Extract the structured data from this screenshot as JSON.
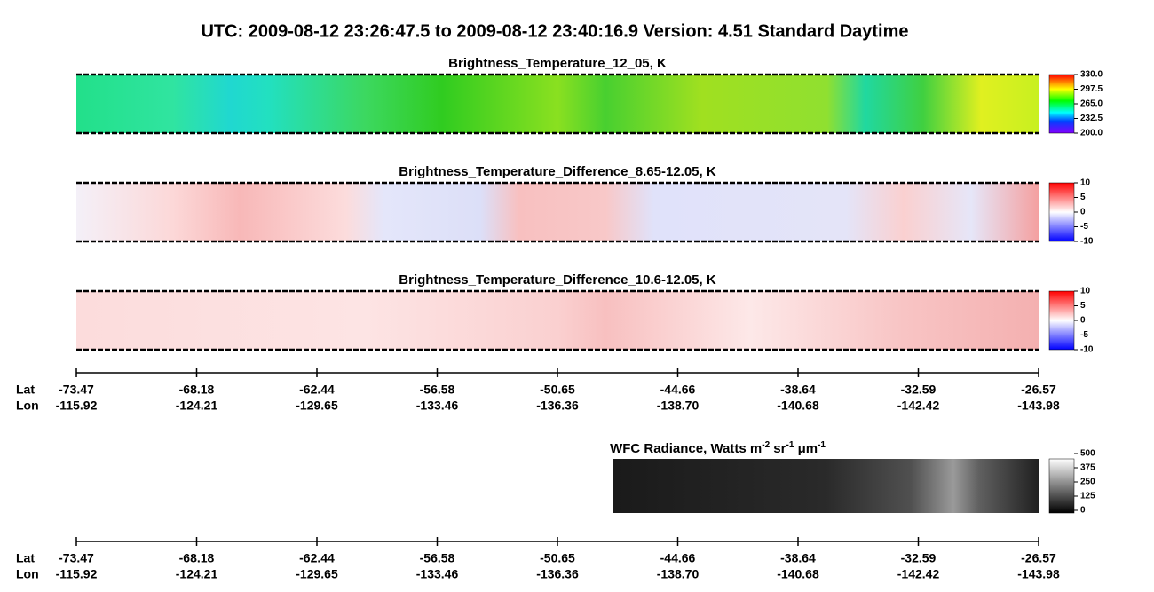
{
  "title": "UTC:  2009-08-12   23:26:47.5  to  2009-08-12   23:40:16.9    Version: 4.51  Standard Daytime",
  "panels": [
    {
      "title": "Brightness_Temperature_12_05, K",
      "colorbar_ticks": [
        "330.0",
        "297.5",
        "265.0",
        "232.5",
        "200.0"
      ]
    },
    {
      "title": "Brightness_Temperature_Difference_8.65-12.05, K",
      "colorbar_ticks": [
        "10",
        "5",
        "0",
        "-5",
        "-10"
      ]
    },
    {
      "title": "Brightness_Temperature_Difference_10.6-12.05, K",
      "colorbar_ticks": [
        "10",
        "5",
        "0",
        "-5",
        "-10"
      ]
    }
  ],
  "wfc": {
    "title_parts": [
      "WFC Radiance, Watts m",
      "-2",
      " sr",
      "-1",
      " μm",
      "-1"
    ],
    "colorbar_ticks": [
      "500",
      "375",
      "250",
      "125",
      "0"
    ]
  },
  "axis": {
    "lat_label": "Lat",
    "lon_label": "Lon",
    "lat": [
      "-73.47",
      "-68.18",
      "-62.44",
      "-56.58",
      "-50.65",
      "-44.66",
      "-38.64",
      "-32.59",
      "-26.57"
    ],
    "lon": [
      "-115.92",
      "-124.21",
      "-129.65",
      "-133.46",
      "-136.36",
      "-138.70",
      "-140.68",
      "-142.42",
      "-143.98"
    ]
  }
}
